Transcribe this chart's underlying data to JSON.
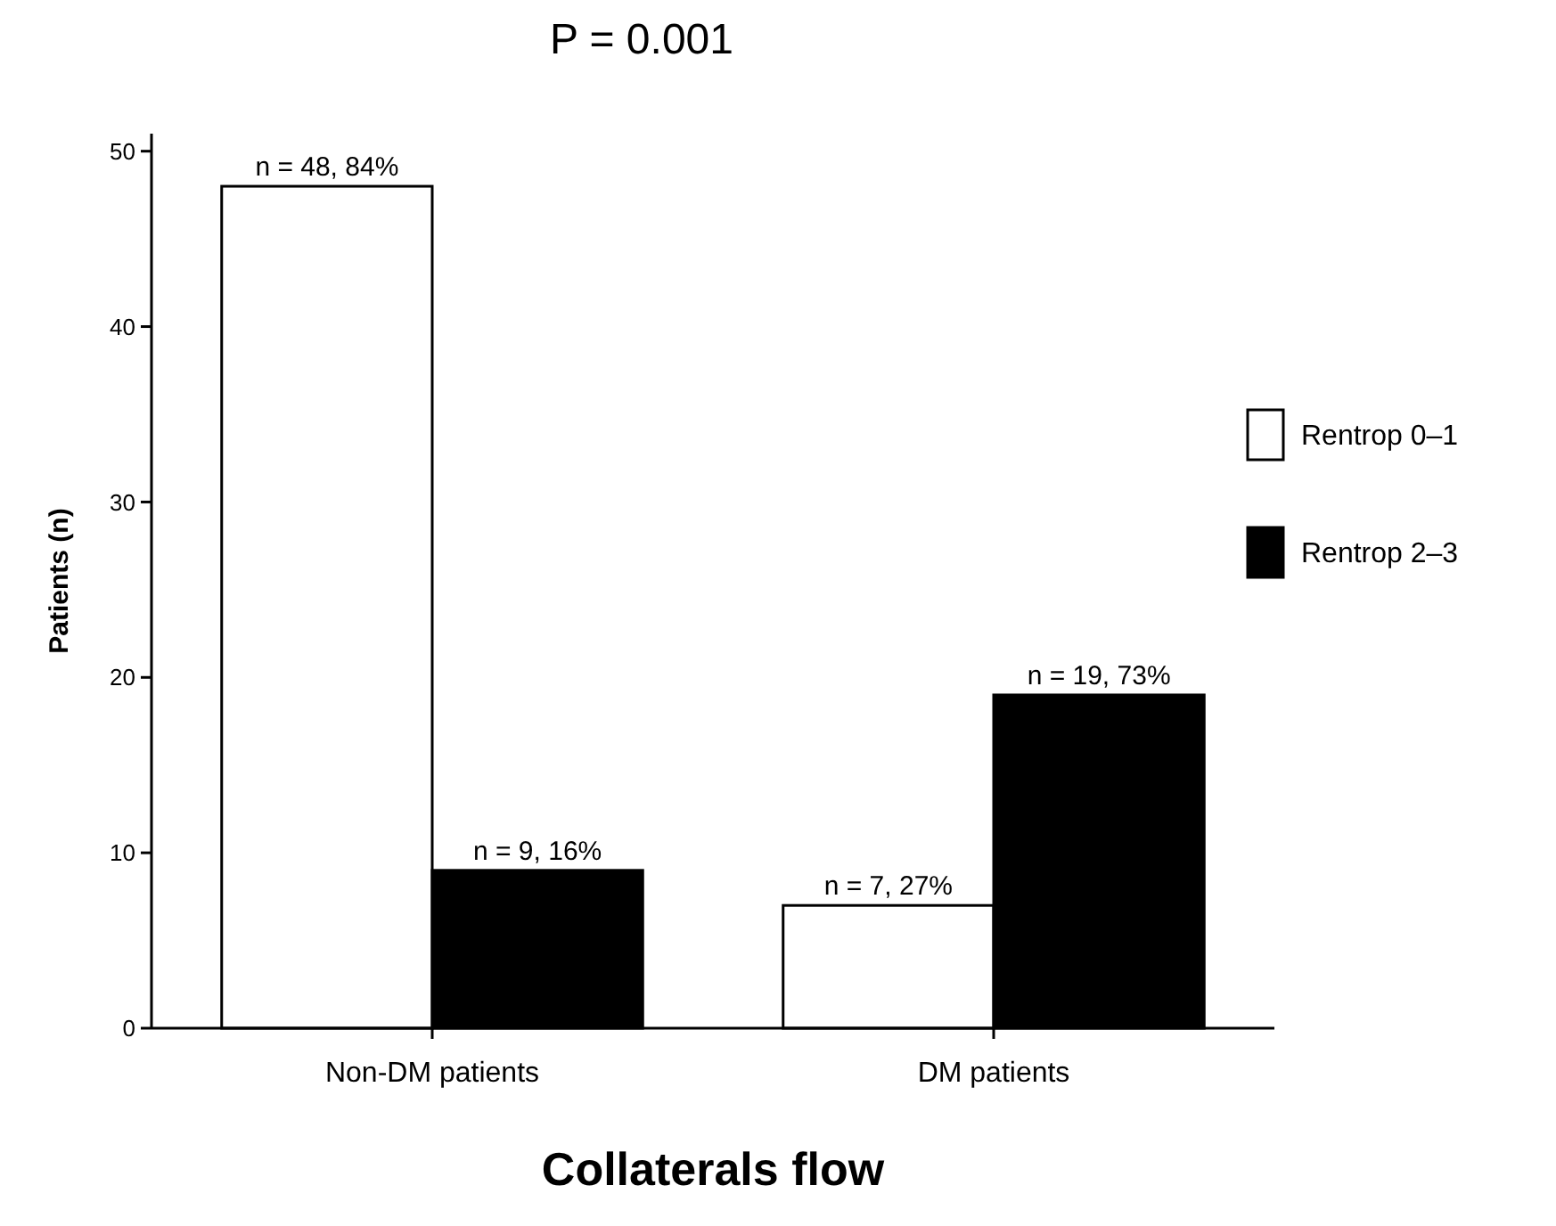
{
  "chart_data": {
    "type": "bar",
    "title": "P = 0.001",
    "xlabel": "Collaterals flow",
    "ylabel": "Patients (n)",
    "categories": [
      "Non-DM patients",
      "DM patients"
    ],
    "series": [
      {
        "name": "Rentrop 0–1",
        "color": "#ffffff",
        "values": [
          48,
          7
        ],
        "value_labels": [
          "n = 48, 84%",
          "n = 7, 27%"
        ]
      },
      {
        "name": "Rentrop 2–3",
        "color": "#000000",
        "values": [
          9,
          19
        ],
        "value_labels": [
          "n = 9, 16%",
          "n = 19, 73%"
        ]
      }
    ],
    "ylim": [
      0,
      51
    ],
    "yticks": [
      0,
      10,
      20,
      30,
      40,
      50
    ],
    "grid": false,
    "legend": "right"
  }
}
